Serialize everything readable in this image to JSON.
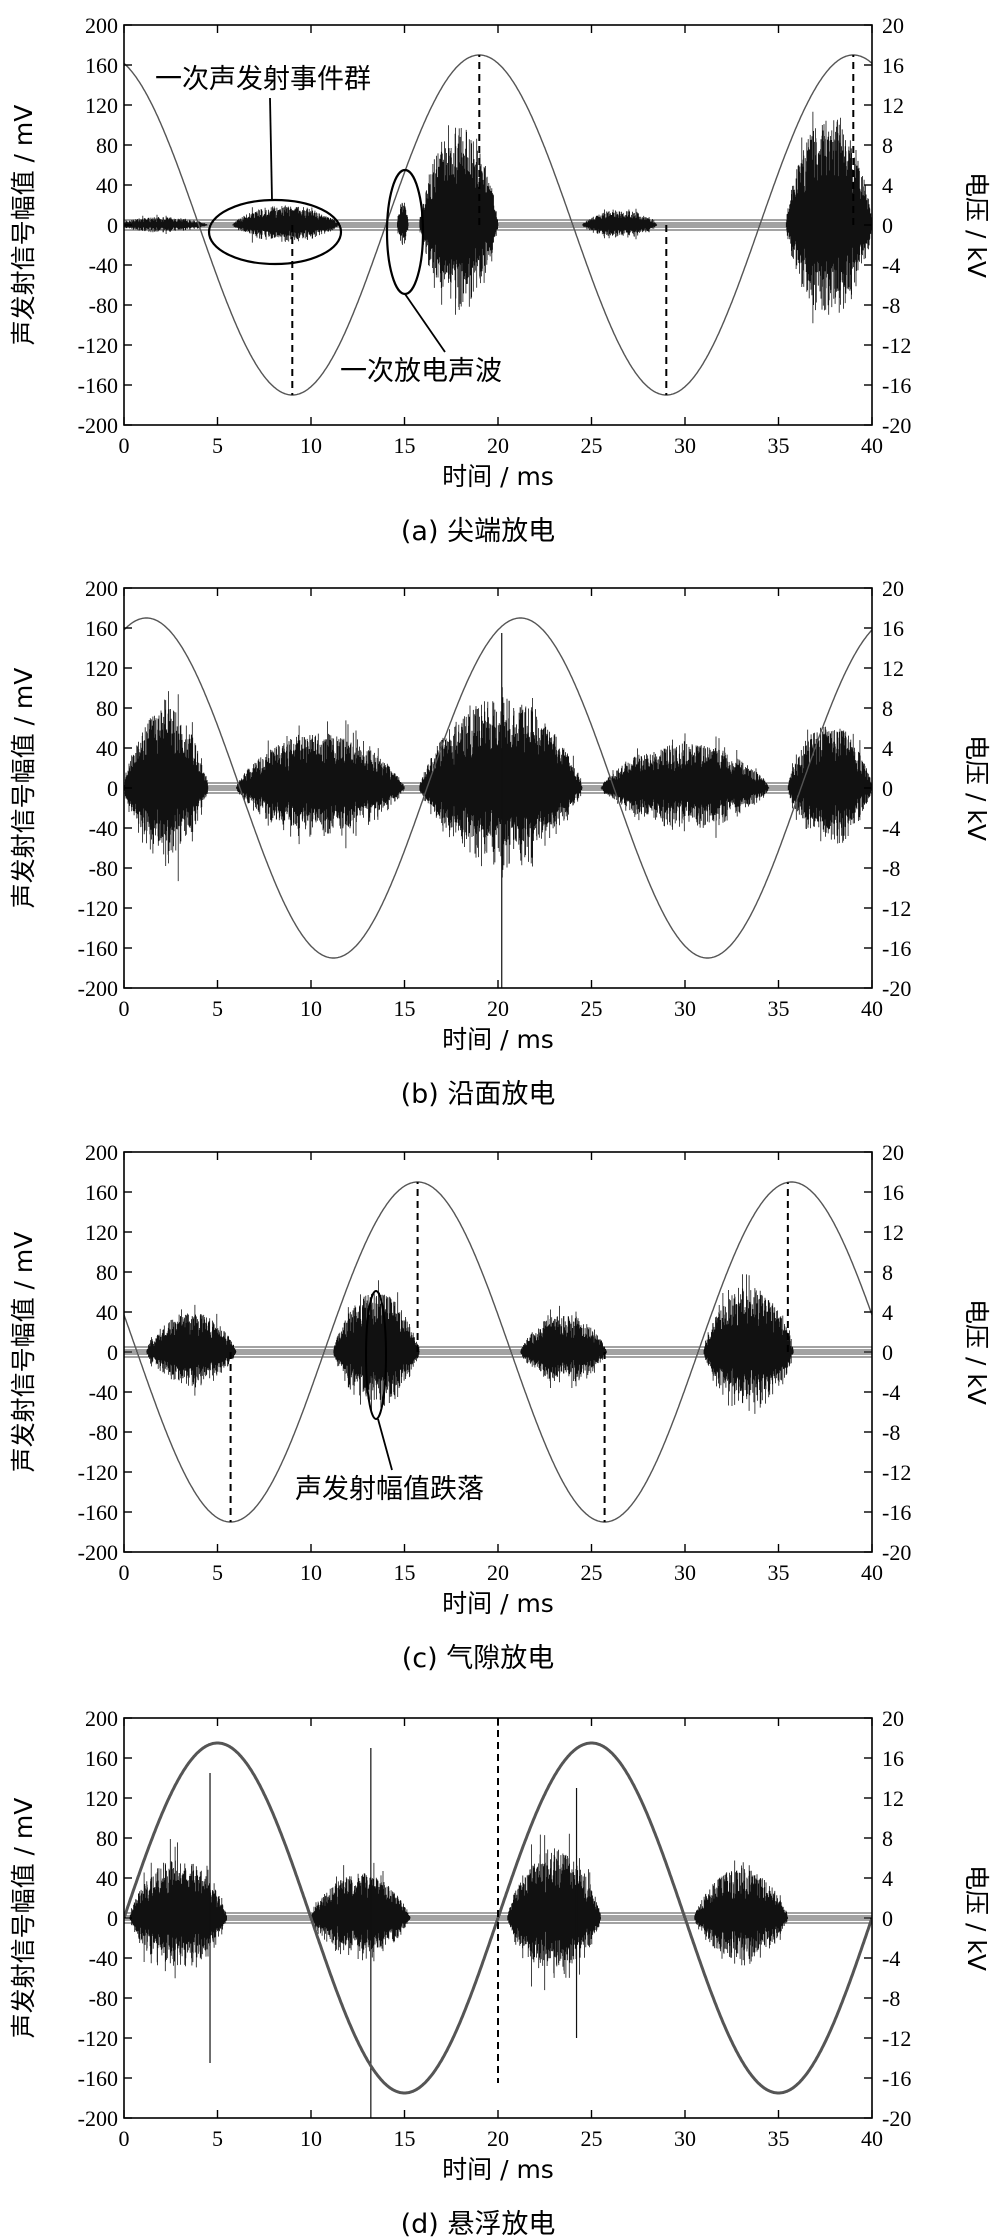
{
  "panels": [
    {
      "caption": "(a) 尖端放电",
      "chart_data": {
        "type": "line",
        "xlabel": "时间 / ms",
        "ylabel": "声发射信号幅值 / mV",
        "y2label": "电压 / kV",
        "xlim": [
          0,
          40
        ],
        "ylim": [
          -200,
          200
        ],
        "y2lim": [
          -20,
          20
        ],
        "xticks": [
          0,
          5,
          10,
          15,
          20,
          25,
          30,
          35,
          40
        ],
        "yticks": [
          200,
          160,
          120,
          80,
          40,
          0,
          -40,
          -80,
          -120,
          -160,
          -200
        ],
        "y2ticks": [
          20,
          16,
          12,
          8,
          4,
          0,
          -4,
          -8,
          -12,
          -16,
          -20
        ],
        "voltage": {
          "amplitude_kv": 17,
          "period_ms": 20,
          "peak_ms": 19
        },
        "bursts": [
          {
            "x": [
              -0.5,
              4.5
            ],
            "amp_mv": 8
          },
          {
            "x": [
              5.8,
              11.5
            ],
            "amp_mv": 20
          },
          {
            "x": [
              14.6,
              15.2
            ],
            "amp_mv": 25
          },
          {
            "x": [
              15.8,
              20.0
            ],
            "amp_mv": 100
          },
          {
            "x": [
              24.5,
              28.5
            ],
            "amp_mv": 15
          },
          {
            "x": [
              35.4,
              40.0
            ],
            "amp_mv": 110
          }
        ],
        "dashed_x_ms": [
          9,
          19,
          29,
          39
        ],
        "annotations": [
          "一次声发射事件群",
          "一次放电声波"
        ]
      }
    },
    {
      "caption": "(b) 沿面放电",
      "chart_data": {
        "type": "line",
        "xlabel": "时间 / ms",
        "ylabel": "声发射信号幅值 / mV",
        "y2label": "电压 / kV",
        "xlim": [
          0,
          40
        ],
        "ylim": [
          -200,
          200
        ],
        "y2lim": [
          -20,
          20
        ],
        "xticks": [
          0,
          5,
          10,
          15,
          20,
          25,
          30,
          35,
          40
        ],
        "yticks": [
          200,
          160,
          120,
          80,
          40,
          0,
          -40,
          -80,
          -120,
          -160,
          -200
        ],
        "y2ticks": [
          20,
          16,
          12,
          8,
          4,
          0,
          -4,
          -8,
          -12,
          -16,
          -20
        ],
        "voltage": {
          "amplitude_kv": 17,
          "period_ms": 20,
          "peak_ms": 21.2
        },
        "bursts": [
          {
            "x": [
              0.0,
              4.5
            ],
            "amp_mv": 80
          },
          {
            "x": [
              6.0,
              15.0
            ],
            "amp_mv": 55
          },
          {
            "x": [
              15.8,
              24.5
            ],
            "amp_mv": 90
          },
          {
            "x": [
              25.5,
              34.5
            ],
            "amp_mv": 45
          },
          {
            "x": [
              35.5,
              40.0
            ],
            "amp_mv": 65
          }
        ],
        "spikes": [
          {
            "x": 20.2,
            "top_mv": 155,
            "bottom_mv": -200
          }
        ],
        "dashed_x_ms": [],
        "annotations": []
      }
    },
    {
      "caption": "(c) 气隙放电",
      "chart_data": {
        "type": "line",
        "xlabel": "时间 / ms",
        "ylabel": "声发射信号幅值 / mV",
        "y2label": "电压 / kV",
        "xlim": [
          0,
          40
        ],
        "ylim": [
          -200,
          200
        ],
        "y2lim": [
          -20,
          20
        ],
        "xticks": [
          0,
          5,
          10,
          15,
          20,
          25,
          30,
          35,
          40
        ],
        "yticks": [
          200,
          160,
          120,
          80,
          40,
          0,
          -40,
          -80,
          -120,
          -160,
          -200
        ],
        "y2ticks": [
          20,
          16,
          12,
          8,
          4,
          0,
          -4,
          -8,
          -12,
          -16,
          -20
        ],
        "voltage": {
          "amplitude_kv": 17,
          "period_ms": 20,
          "peak_ms": 15.7
        },
        "bursts": [
          {
            "x": [
              1.2,
              6.0
            ],
            "amp_mv": 40
          },
          {
            "x": [
              11.2,
              15.8
            ],
            "amp_mv": 60
          },
          {
            "x": [
              21.2,
              25.8
            ],
            "amp_mv": 38
          },
          {
            "x": [
              31.0,
              35.8
            ],
            "amp_mv": 65
          }
        ],
        "dashed_x_ms": [
          5.7,
          15.7,
          25.7,
          35.5
        ],
        "annotations": [
          "声发射幅值跌落"
        ]
      }
    },
    {
      "caption": "(d) 悬浮放电",
      "chart_data": {
        "type": "line",
        "xlabel": "时间 / ms",
        "ylabel": "声发射信号幅值 / mV",
        "y2label": "电压 / kV",
        "xlim": [
          0,
          40
        ],
        "ylim": [
          -200,
          200
        ],
        "y2lim": [
          -20,
          20
        ],
        "xticks": [
          0,
          5,
          10,
          15,
          20,
          25,
          30,
          35,
          40
        ],
        "yticks": [
          200,
          160,
          120,
          80,
          40,
          0,
          -40,
          -80,
          -120,
          -160,
          -200
        ],
        "y2ticks": [
          20,
          16,
          12,
          8,
          4,
          0,
          -4,
          -8,
          -12,
          -16,
          -20
        ],
        "voltage": {
          "amplitude_kv": 17.5,
          "period_ms": 20,
          "peak_ms": 5
        },
        "bursts": [
          {
            "x": [
              0.3,
              5.5
            ],
            "amp_mv": 60
          },
          {
            "x": [
              10.0,
              15.3
            ],
            "amp_mv": 45
          },
          {
            "x": [
              20.5,
              25.5
            ],
            "amp_mv": 70
          },
          {
            "x": [
              30.5,
              35.5
            ],
            "amp_mv": 50
          }
        ],
        "spikes": [
          {
            "x": 4.6,
            "top_mv": 145,
            "bottom_mv": -145
          },
          {
            "x": 13.2,
            "top_mv": 170,
            "bottom_mv": -200
          },
          {
            "x": 24.2,
            "top_mv": 130,
            "bottom_mv": -120
          }
        ],
        "dashed_x_ms": [
          20
        ],
        "annotations": []
      }
    }
  ],
  "colors": {
    "voltage": "#555555",
    "signal": "#111111",
    "axis": "#000000"
  }
}
